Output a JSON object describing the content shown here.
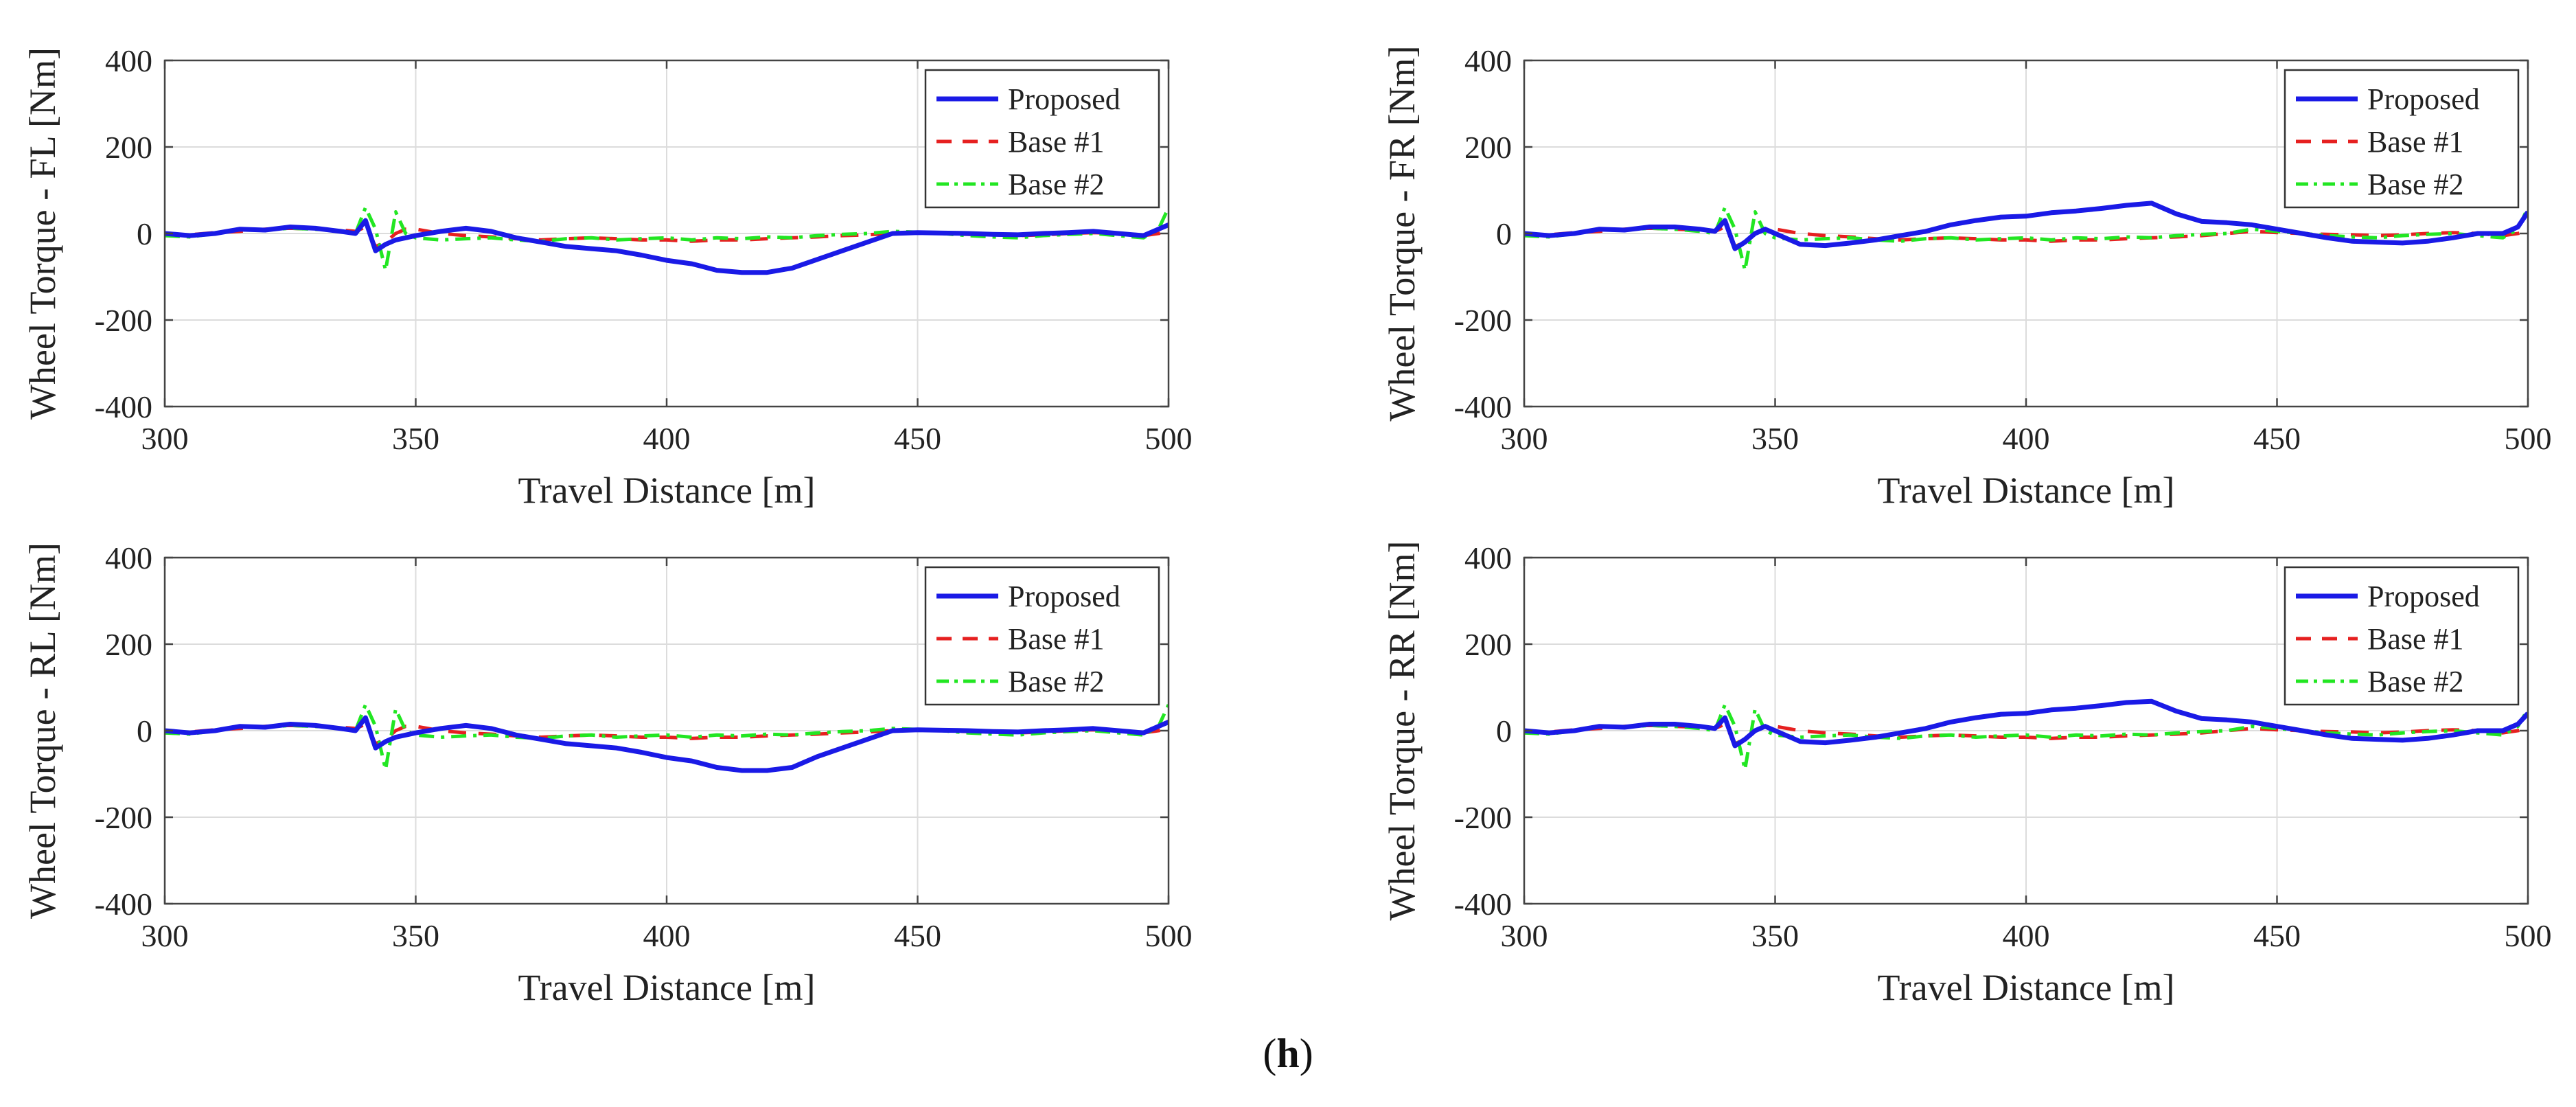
{
  "figure_label": {
    "open": "(",
    "letter": "h",
    "close": ")"
  },
  "chart_data": [
    {
      "type": "line",
      "panel": "FL",
      "title": "",
      "xlabel": "Travel Distance [m]",
      "ylabel": "Wheel Torque - FL [Nm]",
      "xlim": [
        300,
        500
      ],
      "ylim": [
        -400,
        400
      ],
      "xticks": [
        300,
        350,
        400,
        450,
        500
      ],
      "yticks": [
        -400,
        -200,
        0,
        200,
        400
      ],
      "grid": true,
      "legend_position": "top-right",
      "x": [
        300,
        305,
        310,
        315,
        320,
        325,
        330,
        335,
        338,
        340,
        342,
        344,
        346,
        348,
        350,
        355,
        360,
        365,
        370,
        375,
        380,
        385,
        390,
        395,
        400,
        405,
        410,
        415,
        420,
        425,
        430,
        435,
        440,
        445,
        450,
        455,
        460,
        465,
        470,
        475,
        480,
        485,
        490,
        495,
        498,
        500
      ],
      "series": [
        {
          "name": "Proposed",
          "color": "#1a1ae6",
          "dash": "solid",
          "values": [
            0,
            -5,
            0,
            10,
            8,
            15,
            12,
            5,
            0,
            30,
            -40,
            -25,
            -15,
            -10,
            -5,
            5,
            12,
            5,
            -10,
            -20,
            -30,
            -35,
            -40,
            -50,
            -62,
            -70,
            -85,
            -90,
            -90,
            -80,
            -60,
            -40,
            -20,
            0,
            2,
            1,
            0,
            -2,
            -3,
            0,
            2,
            5,
            0,
            -5,
            10,
            20
          ]
        },
        {
          "name": "Base #1",
          "color": "#e62020",
          "dash": "dashed",
          "values": [
            -5,
            -3,
            2,
            5,
            10,
            12,
            10,
            8,
            5,
            15,
            -30,
            -20,
            0,
            10,
            10,
            0,
            -5,
            -8,
            -12,
            -15,
            -12,
            -10,
            -12,
            -15,
            -15,
            -18,
            -15,
            -15,
            -12,
            -10,
            -8,
            -5,
            -3,
            0,
            1,
            0,
            -2,
            -3,
            -5,
            -3,
            0,
            2,
            0,
            -5,
            0,
            5
          ]
        },
        {
          "name": "Base #2",
          "color": "#22e622",
          "dash": "dashdot",
          "values": [
            -5,
            -8,
            0,
            10,
            8,
            12,
            10,
            5,
            0,
            60,
            10,
            -85,
            50,
            0,
            -10,
            -15,
            -12,
            -10,
            -15,
            -18,
            -12,
            -10,
            -15,
            -12,
            -10,
            -15,
            -10,
            -12,
            -8,
            -10,
            -5,
            -2,
            0,
            5,
            3,
            0,
            -5,
            -8,
            -10,
            -5,
            -2,
            0,
            -5,
            -10,
            10,
            60
          ]
        }
      ]
    },
    {
      "type": "line",
      "panel": "FR",
      "title": "",
      "xlabel": "Travel Distance [m]",
      "ylabel": "Wheel Torque - FR [Nm]",
      "xlim": [
        300,
        500
      ],
      "ylim": [
        -400,
        400
      ],
      "xticks": [
        300,
        350,
        400,
        450,
        500
      ],
      "yticks": [
        -400,
        -200,
        0,
        200,
        400
      ],
      "grid": true,
      "legend_position": "top-right",
      "x": [
        300,
        305,
        310,
        315,
        320,
        325,
        330,
        335,
        338,
        340,
        342,
        344,
        346,
        348,
        350,
        355,
        360,
        365,
        370,
        375,
        380,
        385,
        390,
        395,
        400,
        405,
        410,
        415,
        420,
        425,
        430,
        435,
        440,
        445,
        450,
        455,
        460,
        465,
        470,
        475,
        480,
        485,
        490,
        495,
        498,
        500
      ],
      "series": [
        {
          "name": "Proposed",
          "color": "#1a1ae6",
          "dash": "solid",
          "values": [
            0,
            -5,
            0,
            10,
            8,
            15,
            15,
            10,
            5,
            30,
            -35,
            -20,
            0,
            10,
            0,
            -25,
            -28,
            -22,
            -15,
            -5,
            5,
            20,
            30,
            38,
            40,
            48,
            52,
            58,
            65,
            70,
            45,
            28,
            25,
            20,
            10,
            0,
            -10,
            -18,
            -20,
            -22,
            -18,
            -10,
            0,
            0,
            15,
            50
          ]
        },
        {
          "name": "Base #1",
          "color": "#e62020",
          "dash": "dashed",
          "values": [
            -5,
            -3,
            2,
            5,
            10,
            12,
            10,
            8,
            5,
            15,
            -30,
            -20,
            0,
            10,
            10,
            0,
            -5,
            -8,
            -12,
            -15,
            -12,
            -10,
            -12,
            -15,
            -15,
            -18,
            -15,
            -15,
            -12,
            -10,
            -8,
            -5,
            0,
            5,
            2,
            0,
            -2,
            -3,
            -5,
            -3,
            0,
            2,
            0,
            -5,
            0,
            5
          ]
        },
        {
          "name": "Base #2",
          "color": "#22e622",
          "dash": "dashdot",
          "values": [
            -5,
            -8,
            0,
            10,
            8,
            12,
            10,
            5,
            0,
            60,
            10,
            -85,
            50,
            0,
            -10,
            -15,
            -12,
            -10,
            -15,
            -18,
            -12,
            -10,
            -15,
            -12,
            -10,
            -15,
            -10,
            -12,
            -8,
            -10,
            -5,
            -2,
            0,
            10,
            5,
            0,
            -5,
            -8,
            -10,
            -5,
            -2,
            0,
            -5,
            -10,
            10,
            60
          ]
        }
      ]
    },
    {
      "type": "line",
      "panel": "RL",
      "title": "",
      "xlabel": "Travel Distance [m]",
      "ylabel": "Wheel Torque - RL [Nm]",
      "xlim": [
        300,
        500
      ],
      "ylim": [
        -400,
        400
      ],
      "xticks": [
        300,
        350,
        400,
        450,
        500
      ],
      "yticks": [
        -400,
        -200,
        0,
        200,
        400
      ],
      "grid": true,
      "legend_position": "top-right",
      "x": [
        300,
        305,
        310,
        315,
        320,
        325,
        330,
        335,
        338,
        340,
        342,
        344,
        346,
        348,
        350,
        355,
        360,
        365,
        370,
        375,
        380,
        385,
        390,
        395,
        400,
        405,
        410,
        415,
        420,
        425,
        430,
        435,
        440,
        445,
        450,
        455,
        460,
        465,
        470,
        475,
        480,
        485,
        490,
        495,
        498,
        500
      ],
      "series": [
        {
          "name": "Proposed",
          "color": "#1a1ae6",
          "dash": "solid",
          "values": [
            0,
            -5,
            0,
            10,
            8,
            15,
            12,
            5,
            0,
            30,
            -40,
            -25,
            -15,
            -10,
            -5,
            5,
            12,
            5,
            -10,
            -20,
            -30,
            -35,
            -40,
            -50,
            -62,
            -70,
            -85,
            -92,
            -92,
            -85,
            -60,
            -40,
            -20,
            0,
            2,
            1,
            0,
            -2,
            -3,
            0,
            2,
            5,
            0,
            -5,
            10,
            20
          ]
        },
        {
          "name": "Base #1",
          "color": "#e62020",
          "dash": "dashed",
          "values": [
            -5,
            -3,
            2,
            5,
            10,
            12,
            10,
            8,
            5,
            15,
            -30,
            -20,
            0,
            10,
            10,
            0,
            -5,
            -8,
            -12,
            -15,
            -12,
            -10,
            -12,
            -15,
            -15,
            -18,
            -15,
            -15,
            -12,
            -10,
            -8,
            -5,
            -3,
            0,
            1,
            0,
            -2,
            -3,
            -5,
            -3,
            0,
            2,
            0,
            -5,
            0,
            5
          ]
        },
        {
          "name": "Base #2",
          "color": "#22e622",
          "dash": "dashdot",
          "values": [
            -5,
            -8,
            0,
            10,
            8,
            12,
            10,
            5,
            0,
            60,
            10,
            -90,
            50,
            0,
            -10,
            -15,
            -12,
            -10,
            -15,
            -18,
            -12,
            -10,
            -15,
            -12,
            -10,
            -15,
            -10,
            -12,
            -8,
            -10,
            -5,
            -2,
            0,
            5,
            3,
            0,
            -5,
            -8,
            -10,
            -5,
            -2,
            0,
            -5,
            -10,
            10,
            60
          ]
        }
      ]
    },
    {
      "type": "line",
      "panel": "RR",
      "title": "",
      "xlabel": "Travel Distance [m]",
      "ylabel": "Wheel Torque - RR [Nm]",
      "xlim": [
        300,
        500
      ],
      "ylim": [
        -400,
        400
      ],
      "xticks": [
        300,
        350,
        400,
        450,
        500
      ],
      "yticks": [
        -400,
        -200,
        0,
        200,
        400
      ],
      "grid": true,
      "legend_position": "top-right",
      "x": [
        300,
        305,
        310,
        315,
        320,
        325,
        330,
        335,
        338,
        340,
        342,
        344,
        346,
        348,
        350,
        355,
        360,
        365,
        370,
        375,
        380,
        385,
        390,
        395,
        400,
        405,
        410,
        415,
        420,
        425,
        430,
        435,
        440,
        445,
        450,
        455,
        460,
        465,
        470,
        475,
        480,
        485,
        490,
        495,
        498,
        500
      ],
      "series": [
        {
          "name": "Proposed",
          "color": "#1a1ae6",
          "dash": "solid",
          "values": [
            0,
            -5,
            0,
            10,
            8,
            15,
            15,
            10,
            5,
            30,
            -35,
            -20,
            0,
            10,
            0,
            -25,
            -28,
            -22,
            -15,
            -5,
            5,
            20,
            30,
            38,
            40,
            48,
            52,
            58,
            65,
            68,
            45,
            28,
            25,
            20,
            10,
            0,
            -10,
            -18,
            -20,
            -22,
            -18,
            -10,
            0,
            0,
            15,
            40
          ]
        },
        {
          "name": "Base #1",
          "color": "#e62020",
          "dash": "dashed",
          "values": [
            -5,
            -3,
            2,
            5,
            10,
            12,
            10,
            8,
            5,
            15,
            -30,
            -20,
            0,
            10,
            10,
            0,
            -5,
            -8,
            -12,
            -15,
            -12,
            -10,
            -12,
            -15,
            -15,
            -18,
            -15,
            -15,
            -12,
            -10,
            -8,
            -5,
            0,
            5,
            2,
            0,
            -2,
            -3,
            -5,
            -3,
            0,
            2,
            0,
            -5,
            0,
            5
          ]
        },
        {
          "name": "Base #2",
          "color": "#22e622",
          "dash": "dashdot",
          "values": [
            -5,
            -8,
            0,
            10,
            8,
            12,
            10,
            5,
            0,
            60,
            10,
            -90,
            50,
            0,
            -10,
            -15,
            -12,
            -10,
            -15,
            -18,
            -12,
            -10,
            -15,
            -12,
            -10,
            -15,
            -10,
            -12,
            -8,
            -10,
            -5,
            -2,
            0,
            10,
            5,
            0,
            -5,
            -8,
            -10,
            -5,
            -2,
            0,
            -5,
            -10,
            10,
            50
          ]
        }
      ]
    }
  ]
}
